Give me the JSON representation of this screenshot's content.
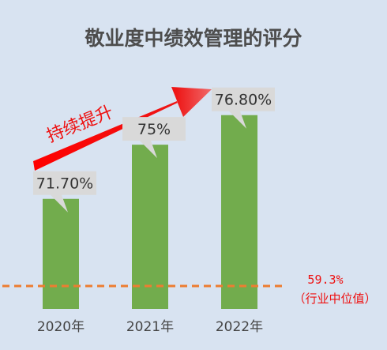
{
  "chart_data": {
    "type": "bar",
    "title": "敬业度中绩效管理的评分",
    "categories": [
      "2020年",
      "2021年",
      "2022年"
    ],
    "values": [
      71.7,
      75,
      76.8
    ],
    "value_labels": [
      "71.70%",
      "75%",
      "76.80%"
    ],
    "ylim": [
      65,
      79
    ],
    "grid": false,
    "legend": "none",
    "colors": {
      "bar": "#72ac4d",
      "callout": "#d9d9d9",
      "median_line": "#ed7d31",
      "accent": "#ee1111"
    },
    "reference_line": {
      "value": 59.3,
      "label": "59.3%",
      "sublabel": "（行业中位值）"
    },
    "annotation": {
      "text": "持续提升",
      "icon": "trend-up-arrow-icon"
    }
  }
}
